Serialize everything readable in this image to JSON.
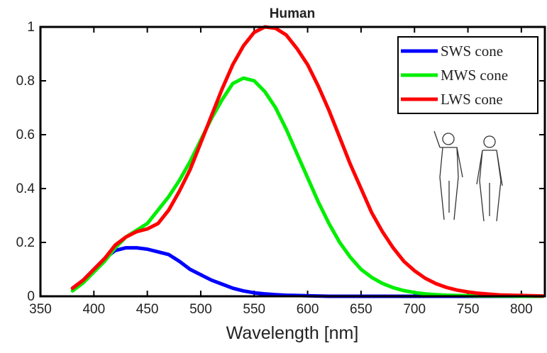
{
  "chart_data": {
    "type": "line",
    "title": "Human",
    "x_label": "Wavelength [nm]",
    "x": [
      380,
      390,
      400,
      410,
      420,
      430,
      440,
      450,
      460,
      470,
      480,
      490,
      500,
      510,
      520,
      530,
      540,
      550,
      560,
      570,
      580,
      590,
      600,
      610,
      620,
      630,
      640,
      650,
      660,
      670,
      680,
      690,
      700,
      710,
      720,
      730,
      740,
      750,
      760,
      770,
      780,
      790,
      800,
      810,
      820
    ],
    "series": [
      {
        "name": "SWS cone",
        "color": "#0000ff",
        "values": [
          0.03,
          0.06,
          0.1,
          0.14,
          0.17,
          0.18,
          0.18,
          0.175,
          0.165,
          0.155,
          0.13,
          0.1,
          0.08,
          0.06,
          0.045,
          0.03,
          0.02,
          0.013,
          0.009,
          0.006,
          0.004,
          0.003,
          0.002,
          0.001,
          0,
          0,
          0,
          0,
          0,
          0,
          0,
          0,
          0,
          0,
          0,
          0,
          0,
          0,
          0,
          0,
          0,
          0,
          0,
          0,
          0
        ]
      },
      {
        "name": "MWS cone",
        "color": "#00ee00",
        "values": [
          0.02,
          0.05,
          0.09,
          0.13,
          0.18,
          0.22,
          0.245,
          0.27,
          0.32,
          0.37,
          0.43,
          0.5,
          0.58,
          0.66,
          0.73,
          0.79,
          0.81,
          0.8,
          0.76,
          0.7,
          0.62,
          0.53,
          0.44,
          0.35,
          0.27,
          0.2,
          0.145,
          0.1,
          0.07,
          0.048,
          0.032,
          0.021,
          0.014,
          0.009,
          0.006,
          0.004,
          0.003,
          0.002,
          0.001,
          0.001,
          0.0005,
          0.0005,
          0,
          0,
          0
        ]
      },
      {
        "name": "LWS cone",
        "color": "#ff0000",
        "values": [
          0.03,
          0.06,
          0.1,
          0.14,
          0.19,
          0.22,
          0.24,
          0.25,
          0.27,
          0.32,
          0.39,
          0.47,
          0.57,
          0.67,
          0.77,
          0.86,
          0.93,
          0.98,
          1.0,
          0.995,
          0.97,
          0.92,
          0.86,
          0.78,
          0.69,
          0.59,
          0.49,
          0.4,
          0.31,
          0.24,
          0.18,
          0.13,
          0.095,
          0.067,
          0.047,
          0.033,
          0.023,
          0.016,
          0.011,
          0.008,
          0.005,
          0.004,
          0.003,
          0.002,
          0.001
        ]
      }
    ],
    "xlim": [
      350,
      822
    ],
    "ylim": [
      0,
      1
    ],
    "xticks": [
      350,
      400,
      450,
      500,
      550,
      600,
      650,
      700,
      750,
      800
    ],
    "yticks": [
      0,
      0.2,
      0.4,
      0.6,
      0.8,
      1
    ],
    "grid": false,
    "legend": "upper right"
  }
}
